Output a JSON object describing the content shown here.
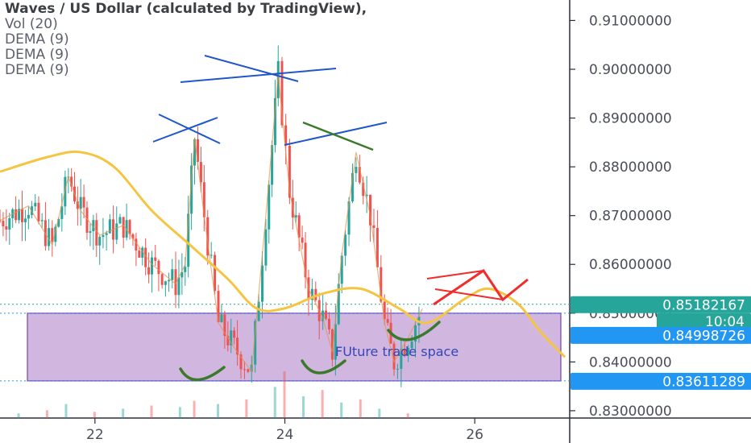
{
  "legend": {
    "title": "Waves / US Dollar (calculated by TradingView),",
    "vol": "Vol (20)",
    "dema": [
      "DEMA (9)",
      "DEMA (9)",
      "DEMA (9)"
    ]
  },
  "annotation_text": "FUture trade space",
  "badges": {
    "last_price": "0.85182167",
    "countdown": "10:04",
    "range_top": "0.84998726",
    "range_bottom": "0.83611289"
  },
  "colors": {
    "up": "#26a69a",
    "down": "#ef5350",
    "dema": "#f5c542",
    "zone_fill": "#c9a9d9",
    "zone_stroke": "#7b3fb5",
    "badge_green": "#26a69a",
    "badge_blue": "#2196f3",
    "axis_text": "#4a4e59"
  },
  "chart_data": {
    "type": "line",
    "title": "Waves / US Dollar (calculated by TradingView)",
    "xlabel": "",
    "ylabel": "",
    "x_ticks": [
      "22",
      "24",
      "26"
    ],
    "y_ticks": [
      "0.83000000",
      "0.84000000",
      "0.85000000",
      "0.86000000",
      "0.87000000",
      "0.88000000",
      "0.89000000",
      "0.90000000",
      "0.91000000"
    ],
    "ylim": [
      0.8285,
      0.9142
    ],
    "xlim": [
      21.0,
      27.0
    ],
    "grid": false,
    "series": [
      {
        "name": "WAVES/USD",
        "x": [
          21.0,
          21.3,
          21.55,
          21.72,
          21.85,
          22.05,
          22.3,
          22.6,
          22.85,
          22.95,
          23.05,
          23.15,
          23.3,
          23.5,
          23.65,
          23.8,
          23.93,
          24.05,
          24.25,
          24.4,
          24.5,
          24.6,
          24.75,
          24.9,
          25.05,
          25.15,
          25.3,
          25.45
        ],
        "y": [
          0.869,
          0.872,
          0.864,
          0.878,
          0.871,
          0.866,
          0.868,
          0.86,
          0.856,
          0.86,
          0.886,
          0.87,
          0.848,
          0.842,
          0.838,
          0.87,
          0.899,
          0.875,
          0.855,
          0.849,
          0.842,
          0.862,
          0.883,
          0.87,
          0.848,
          0.84,
          0.845,
          0.851
        ]
      },
      {
        "name": "DEMA (9)",
        "x": [
          21.0,
          21.5,
          21.85,
          22.2,
          22.6,
          23.0,
          23.4,
          23.7,
          24.0,
          24.4,
          24.8,
          25.2,
          25.5,
          25.9,
          26.15,
          26.45,
          26.7,
          26.95
        ],
        "y": [
          0.879,
          0.882,
          0.883,
          0.88,
          0.871,
          0.864,
          0.857,
          0.851,
          0.851,
          0.854,
          0.855,
          0.851,
          0.848,
          0.853,
          0.855,
          0.852,
          0.846,
          0.841
        ]
      }
    ],
    "volume": {
      "name": "Vol (20)",
      "x": [
        21.2,
        21.5,
        21.7,
        22.0,
        22.3,
        22.6,
        22.9,
        23.05,
        23.3,
        23.6,
        23.9,
        24.0,
        24.2,
        24.4,
        24.6,
        24.8,
        25.0,
        25.3
      ],
      "values": [
        3,
        5,
        9,
        4,
        6,
        8,
        7,
        11,
        9,
        12,
        20,
        30,
        14,
        18,
        10,
        12,
        6,
        3
      ]
    },
    "ranges": {
      "zone_top": 0.84998726,
      "zone_bottom": 0.83611289,
      "last_price": 0.85182167
    }
  }
}
